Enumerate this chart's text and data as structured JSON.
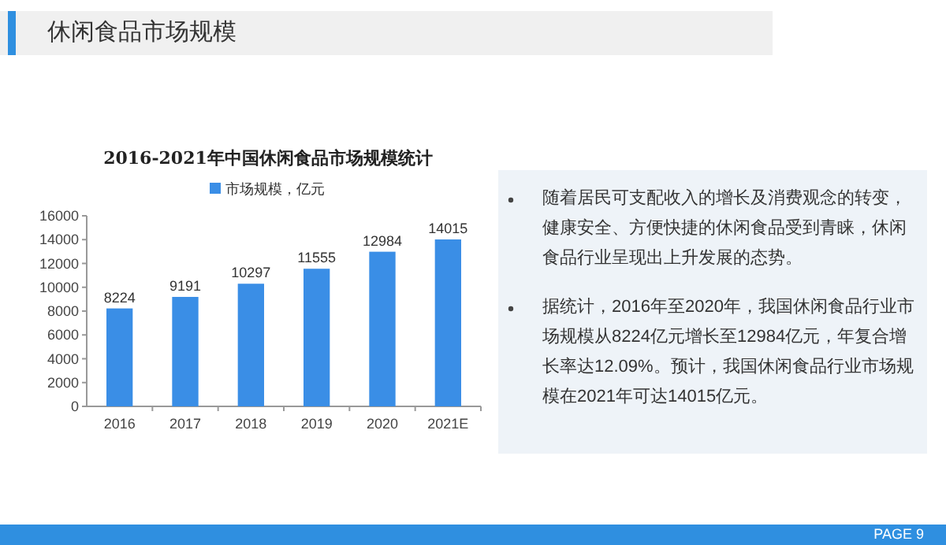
{
  "chart_data": {
    "type": "bar",
    "title": "2016-2021年中国休闲食品市场规模统计",
    "categories": [
      "2016",
      "2017",
      "2018",
      "2019",
      "2020",
      "2021E"
    ],
    "series": [
      {
        "name": "市场规模，亿元",
        "color": "#3a8ee6",
        "values": [
          8224,
          9191,
          10297,
          11555,
          12984,
          14015
        ]
      }
    ],
    "ylim": [
      0,
      16000
    ],
    "yticks": [
      0,
      2000,
      4000,
      6000,
      8000,
      10000,
      12000,
      14000,
      16000
    ],
    "data_labels": true,
    "legend": "top",
    "annotations": [
      "休闲食品市场规模",
      "随着居民可支配收入的增长及消费观念的转变，健康安全、方便快捷的休闲食品受到青睐，休闲食品行业呈现出上升发展的态势。",
      "据统计，2016年至2020年，我国休闲食品行业市场规模从8224亿元增长至12984亿元，年复合增长率达12.09%。预计，我国休闲食品行业市场规模在2021年可达14015亿元。",
      "PAGE 9"
    ]
  }
}
